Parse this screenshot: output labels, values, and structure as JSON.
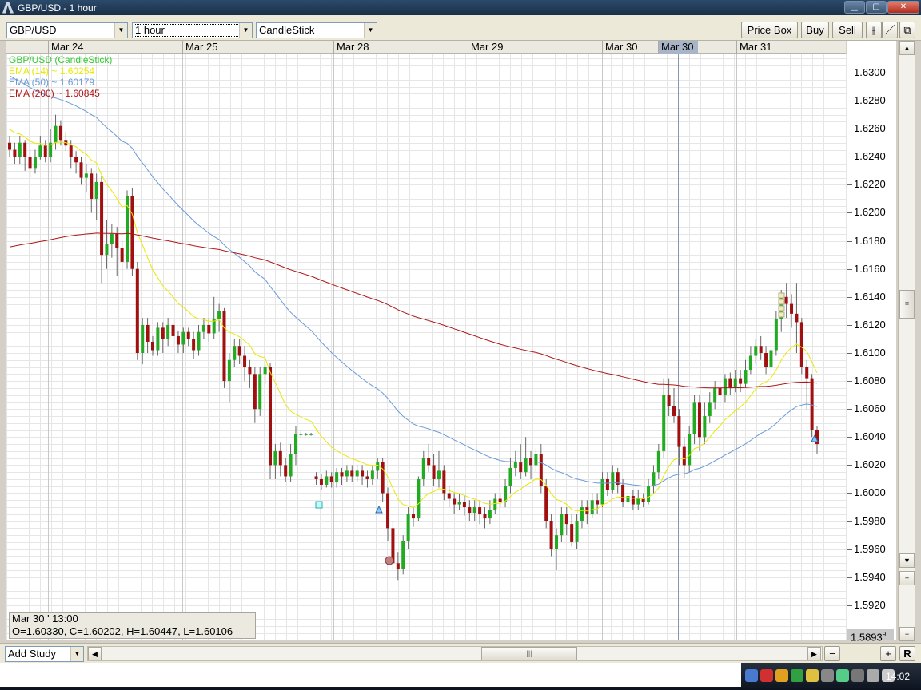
{
  "window": {
    "title": "GBP/USD - 1 hour",
    "minimize": "▁",
    "maximize": "▢",
    "close": "✕"
  },
  "toolbar": {
    "symbol": "GBP/USD",
    "timeframe": "1 hour",
    "chart_type": "CandleStick",
    "price_box": "Price Box",
    "buy": "Buy",
    "sell": "Sell",
    "bar_icon": "⫲",
    "line_icon": "／",
    "detach_icon": "⧉"
  },
  "date_axis": [
    {
      "label": "Mar 24"
    },
    {
      "label": "Mar 25"
    },
    {
      "label": "Mar 28"
    },
    {
      "label": "Mar 29"
    },
    {
      "label": "Mar 30"
    },
    {
      "label": "Mar 30",
      "highlighted": true
    },
    {
      "label": "Mar 31"
    }
  ],
  "legend": [
    {
      "text": "GBP/USD (CandleStick)",
      "color": "#33cc33"
    },
    {
      "text": "EMA (14) ~ 1.60254",
      "color": "#e8e800"
    },
    {
      "text": "EMA (50) ~ 1.60179",
      "color": "#6a9ad8"
    },
    {
      "text": "EMA (200) ~ 1.60845",
      "color": "#b01818"
    }
  ],
  "ohlc_box": {
    "datetime": "Mar 30 ' 13:00",
    "values": "O=1.60330, C=1.60202, H=1.60447, L=1.60106"
  },
  "price_axis": [
    "1.6300",
    "1.6280",
    "1.6260",
    "1.6240",
    "1.6220",
    "1.6200",
    "1.6180",
    "1.6160",
    "1.6140",
    "1.6120",
    "1.6100",
    "1.6080",
    "1.6060",
    "1.6040",
    "1.6020",
    "1.6000",
    "1.5980",
    "1.5960",
    "1.5940",
    "1.5920"
  ],
  "current_price": "1.5893",
  "current_price_sup": "9",
  "bottom": {
    "add_study": "Add Study",
    "reset": "R",
    "zoom_out": "−",
    "zoom_in": "+"
  },
  "vscroll": {
    "up": "▲",
    "down": "▼",
    "plus": "+",
    "minus": "−"
  },
  "clock": "14:02",
  "colors": {
    "up": "#22aa22",
    "down": "#a01010",
    "ema14": "#e8e800",
    "ema50": "#6a9ad8",
    "ema200": "#b01818",
    "grid": "#e6e6e6"
  },
  "chart_data": {
    "type": "candlestick",
    "title": "GBP/USD (CandleStick)",
    "ylim": [
      1.5893,
      1.631
    ],
    "x_labels": [
      "Mar 24",
      "Mar 25",
      "Mar 28",
      "Mar 29",
      "Mar 30",
      "Mar 31"
    ],
    "series": [
      {
        "name": "GBP/USD (CandleStick)",
        "ohlc": [
          [
            1.625,
            1.6245,
            1.6255,
            1.624
          ],
          [
            1.6245,
            1.624,
            1.625,
            1.6235
          ],
          [
            1.624,
            1.625,
            1.6255,
            1.6235
          ],
          [
            1.625,
            1.624,
            1.6252,
            1.623
          ],
          [
            1.624,
            1.6232,
            1.6245,
            1.6225
          ],
          [
            1.6232,
            1.624,
            1.6245,
            1.6228
          ],
          [
            1.624,
            1.6248,
            1.6255,
            1.6238
          ],
          [
            1.6248,
            1.624,
            1.6252,
            1.6236
          ],
          [
            1.624,
            1.625,
            1.626,
            1.6236
          ],
          [
            1.625,
            1.6262,
            1.627,
            1.6245
          ],
          [
            1.6262,
            1.6252,
            1.6266,
            1.6248
          ],
          [
            1.6252,
            1.6248,
            1.6258,
            1.6244
          ],
          [
            1.6248,
            1.624,
            1.6252,
            1.6232
          ],
          [
            1.624,
            1.6236,
            1.6244,
            1.6228
          ],
          [
            1.6236,
            1.6225,
            1.624,
            1.622
          ],
          [
            1.6225,
            1.6228,
            1.6235,
            1.6215
          ],
          [
            1.6228,
            1.621,
            1.6232,
            1.62
          ],
          [
            1.621,
            1.6222,
            1.6228,
            1.6195
          ],
          [
            1.6222,
            1.617,
            1.6226,
            1.615
          ],
          [
            1.617,
            1.6178,
            1.6195,
            1.616
          ],
          [
            1.6178,
            1.6185,
            1.6192,
            1.6168
          ],
          [
            1.6185,
            1.6175,
            1.619,
            1.6155
          ],
          [
            1.6175,
            1.6165,
            1.618,
            1.6135
          ],
          [
            1.6165,
            1.6212,
            1.6216,
            1.616
          ],
          [
            1.6212,
            1.616,
            1.6218,
            1.6155
          ],
          [
            1.616,
            1.61,
            1.6165,
            1.6095
          ],
          [
            1.61,
            1.612,
            1.6125,
            1.6092
          ],
          [
            1.612,
            1.6108,
            1.6125,
            1.61
          ],
          [
            1.6108,
            1.6102,
            1.6112,
            1.6098
          ],
          [
            1.6102,
            1.6118,
            1.6122,
            1.6098
          ],
          [
            1.6118,
            1.611,
            1.6122,
            1.61
          ],
          [
            1.611,
            1.612,
            1.6125,
            1.6105
          ],
          [
            1.612,
            1.6112,
            1.6124,
            1.6105
          ],
          [
            1.6112,
            1.6106,
            1.6116,
            1.61
          ],
          [
            1.6106,
            1.6115,
            1.6118,
            1.61
          ],
          [
            1.6115,
            1.611,
            1.6118,
            1.6105
          ],
          [
            1.611,
            1.6102,
            1.6115,
            1.6096
          ],
          [
            1.6102,
            1.6115,
            1.612,
            1.6098
          ],
          [
            1.6115,
            1.612,
            1.6125,
            1.611
          ],
          [
            1.612,
            1.6114,
            1.6125,
            1.6108
          ],
          [
            1.6114,
            1.6124,
            1.614,
            1.611
          ],
          [
            1.6124,
            1.613,
            1.6135,
            1.6115
          ],
          [
            1.613,
            1.608,
            1.6132,
            1.6075
          ],
          [
            1.608,
            1.6095,
            1.61,
            1.6065
          ],
          [
            1.6095,
            1.6105,
            1.611,
            1.609
          ],
          [
            1.6105,
            1.6098,
            1.611,
            1.6092
          ],
          [
            1.6098,
            1.609,
            1.6105,
            1.608
          ],
          [
            1.609,
            1.6085,
            1.6095,
            1.6075
          ],
          [
            1.6085,
            1.606,
            1.609,
            1.605
          ],
          [
            1.606,
            1.6085,
            1.609,
            1.6055
          ],
          [
            1.6085,
            1.609,
            1.6092,
            1.6078
          ],
          [
            1.609,
            1.602,
            1.6093,
            1.601
          ],
          [
            1.602,
            1.603,
            1.6035,
            1.601
          ],
          [
            1.603,
            1.602,
            1.6036,
            1.6012
          ],
          [
            1.602,
            1.6012,
            1.6025,
            1.6008
          ],
          [
            1.6012,
            1.6028,
            1.6035,
            1.6008
          ],
          [
            1.6028,
            1.6042,
            1.6048,
            1.602
          ],
          [
            1.6042,
            1.6042,
            1.6044,
            1.604
          ],
          [
            1.6042,
            1.6042,
            1.6043,
            1.6041
          ],
          [
            1.6042,
            1.6042,
            1.6043,
            1.6041
          ],
          [
            1.6012,
            1.601,
            1.6015,
            1.6006
          ],
          [
            1.601,
            1.6006,
            1.6014,
            1.6002
          ],
          [
            1.6006,
            1.6012,
            1.6016,
            1.6004
          ],
          [
            1.6012,
            1.6008,
            1.6015,
            1.6004
          ],
          [
            1.6008,
            1.6015,
            1.6018,
            1.6004
          ],
          [
            1.6015,
            1.6012,
            1.6018,
            1.6006
          ],
          [
            1.6012,
            1.6016,
            1.602,
            1.6008
          ],
          [
            1.6016,
            1.6012,
            1.602,
            1.6008
          ],
          [
            1.6012,
            1.6016,
            1.602,
            1.6008
          ],
          [
            1.6016,
            1.6012,
            1.602,
            1.6006
          ],
          [
            1.6012,
            1.601,
            1.6016,
            1.6004
          ],
          [
            1.601,
            1.6016,
            1.602,
            1.6006
          ],
          [
            1.6016,
            1.6022,
            1.6025,
            1.601
          ],
          [
            1.6022,
            1.6,
            1.6025,
            1.5994
          ],
          [
            1.6,
            1.5975,
            1.6004,
            1.5966
          ],
          [
            1.5975,
            1.595,
            1.598,
            1.5945
          ],
          [
            1.595,
            1.5946,
            1.5958,
            1.5938
          ],
          [
            1.5946,
            1.5966,
            1.597,
            1.5942
          ],
          [
            1.5966,
            1.5985,
            1.599,
            1.596
          ],
          [
            1.5985,
            1.5982,
            1.599,
            1.5976
          ],
          [
            1.5982,
            1.601,
            1.6012,
            1.598
          ],
          [
            1.601,
            1.6025,
            1.603,
            1.6005
          ],
          [
            1.6025,
            1.602,
            1.6035,
            1.6015
          ],
          [
            1.602,
            1.601,
            1.6028,
            1.6005
          ],
          [
            1.601,
            1.6016,
            1.603,
            1.6004
          ],
          [
            1.6016,
            1.6,
            1.602,
            1.5995
          ],
          [
            1.6,
            1.5996,
            1.6005,
            1.599
          ],
          [
            1.5996,
            1.5992,
            1.6,
            1.5985
          ],
          [
            1.5992,
            1.5994,
            1.6,
            1.5988
          ],
          [
            1.5994,
            1.599,
            1.5998,
            1.5984
          ],
          [
            1.599,
            1.5986,
            1.5995,
            1.598
          ],
          [
            1.5986,
            1.599,
            1.5995,
            1.598
          ],
          [
            1.599,
            1.5985,
            1.5995,
            1.5978
          ],
          [
            1.5985,
            1.5982,
            1.599,
            1.5975
          ],
          [
            1.5982,
            1.5988,
            1.5995,
            1.5978
          ],
          [
            1.5988,
            1.5996,
            1.6,
            1.5985
          ],
          [
            1.5996,
            1.5994,
            1.6,
            1.599
          ],
          [
            1.5994,
            1.6005,
            1.601,
            1.599
          ],
          [
            1.6005,
            1.6018,
            1.6025,
            1.6
          ],
          [
            1.6018,
            1.6022,
            1.603,
            1.6012
          ],
          [
            1.6022,
            1.6015,
            1.6035,
            1.601
          ],
          [
            1.6015,
            1.6025,
            1.604,
            1.6012
          ],
          [
            1.6025,
            1.602,
            1.603,
            1.601
          ],
          [
            1.602,
            1.6028,
            1.6032,
            1.6015
          ],
          [
            1.6028,
            1.6005,
            1.6035,
            1.6
          ],
          [
            1.6005,
            1.598,
            1.601,
            1.5975
          ],
          [
            1.598,
            1.596,
            1.5985,
            1.5955
          ],
          [
            1.596,
            1.597,
            1.5975,
            1.5945
          ],
          [
            1.597,
            1.5985,
            1.599,
            1.5965
          ],
          [
            1.5985,
            1.5978,
            1.599,
            1.597
          ],
          [
            1.5978,
            1.5965,
            1.5985,
            1.5962
          ],
          [
            1.5965,
            1.598,
            1.5985,
            1.596
          ],
          [
            1.598,
            1.599,
            1.5995,
            1.5975
          ],
          [
            1.599,
            1.5985,
            1.5995,
            1.5978
          ],
          [
            1.5985,
            1.5995,
            1.6,
            1.5982
          ],
          [
            1.5995,
            1.5992,
            1.6,
            1.5985
          ],
          [
            1.5992,
            1.601,
            1.6015,
            1.599
          ],
          [
            1.601,
            1.6002,
            1.6015,
            1.5998
          ],
          [
            1.6002,
            1.6015,
            1.602,
            1.6
          ],
          [
            1.6015,
            1.6006,
            1.6018,
            1.6
          ],
          [
            1.6006,
            1.5994,
            1.601,
            1.599
          ],
          [
            1.5994,
            1.5998,
            1.6005,
            1.5985
          ],
          [
            1.5998,
            1.5992,
            1.6002,
            1.5988
          ],
          [
            1.5992,
            1.5996,
            1.6002,
            1.5988
          ],
          [
            1.5996,
            1.5994,
            1.6,
            1.599
          ],
          [
            1.5994,
            1.6005,
            1.601,
            1.5992
          ],
          [
            1.6005,
            1.6015,
            1.602,
            1.6
          ],
          [
            1.6015,
            1.603,
            1.6035,
            1.601
          ],
          [
            1.603,
            1.607,
            1.6082,
            1.6025
          ],
          [
            1.607,
            1.6062,
            1.6082,
            1.6055
          ],
          [
            1.6062,
            1.6055,
            1.6075,
            1.605
          ],
          [
            1.6055,
            1.6033,
            1.606,
            1.602
          ],
          [
            1.6033,
            1.602,
            1.604,
            1.6011
          ],
          [
            1.602,
            1.6042,
            1.6048,
            1.6015
          ],
          [
            1.6042,
            1.6065,
            1.607,
            1.6035
          ],
          [
            1.6065,
            1.604,
            1.607,
            1.603
          ],
          [
            1.604,
            1.6055,
            1.6065,
            1.6035
          ],
          [
            1.6055,
            1.6065,
            1.6072,
            1.605
          ],
          [
            1.6065,
            1.6075,
            1.608,
            1.606
          ],
          [
            1.6075,
            1.607,
            1.608,
            1.6062
          ],
          [
            1.607,
            1.6082,
            1.6085,
            1.6065
          ],
          [
            1.6082,
            1.6075,
            1.6086,
            1.607
          ],
          [
            1.6075,
            1.6082,
            1.6088,
            1.6072
          ],
          [
            1.6082,
            1.6078,
            1.6088,
            1.6072
          ],
          [
            1.6078,
            1.6088,
            1.6095,
            1.6075
          ],
          [
            1.6088,
            1.6098,
            1.6105,
            1.6085
          ],
          [
            1.6098,
            1.6105,
            1.611,
            1.6092
          ],
          [
            1.6105,
            1.61,
            1.6112,
            1.6095
          ],
          [
            1.61,
            1.609,
            1.6105,
            1.6085
          ],
          [
            1.609,
            1.6102,
            1.6108,
            1.6085
          ],
          [
            1.6102,
            1.6124,
            1.613,
            1.6098
          ],
          [
            1.6124,
            1.614,
            1.6145,
            1.6115
          ],
          [
            1.614,
            1.6135,
            1.615,
            1.6125
          ],
          [
            1.6135,
            1.6128,
            1.6142,
            1.6118
          ],
          [
            1.6128,
            1.6122,
            1.615,
            1.61
          ],
          [
            1.6122,
            1.609,
            1.6125,
            1.6085
          ],
          [
            1.609,
            1.6082,
            1.6095,
            1.606
          ],
          [
            1.6082,
            1.6045,
            1.6085,
            1.604
          ],
          [
            1.6045,
            1.6035,
            1.6048,
            1.6028
          ]
        ]
      },
      {
        "name": "EMA (14) ~ 1.60254",
        "color": "#e8e800"
      },
      {
        "name": "EMA (50) ~ 1.60179",
        "color": "#6a9ad8"
      },
      {
        "name": "EMA (200) ~ 1.60845",
        "color": "#b01818"
      }
    ]
  }
}
